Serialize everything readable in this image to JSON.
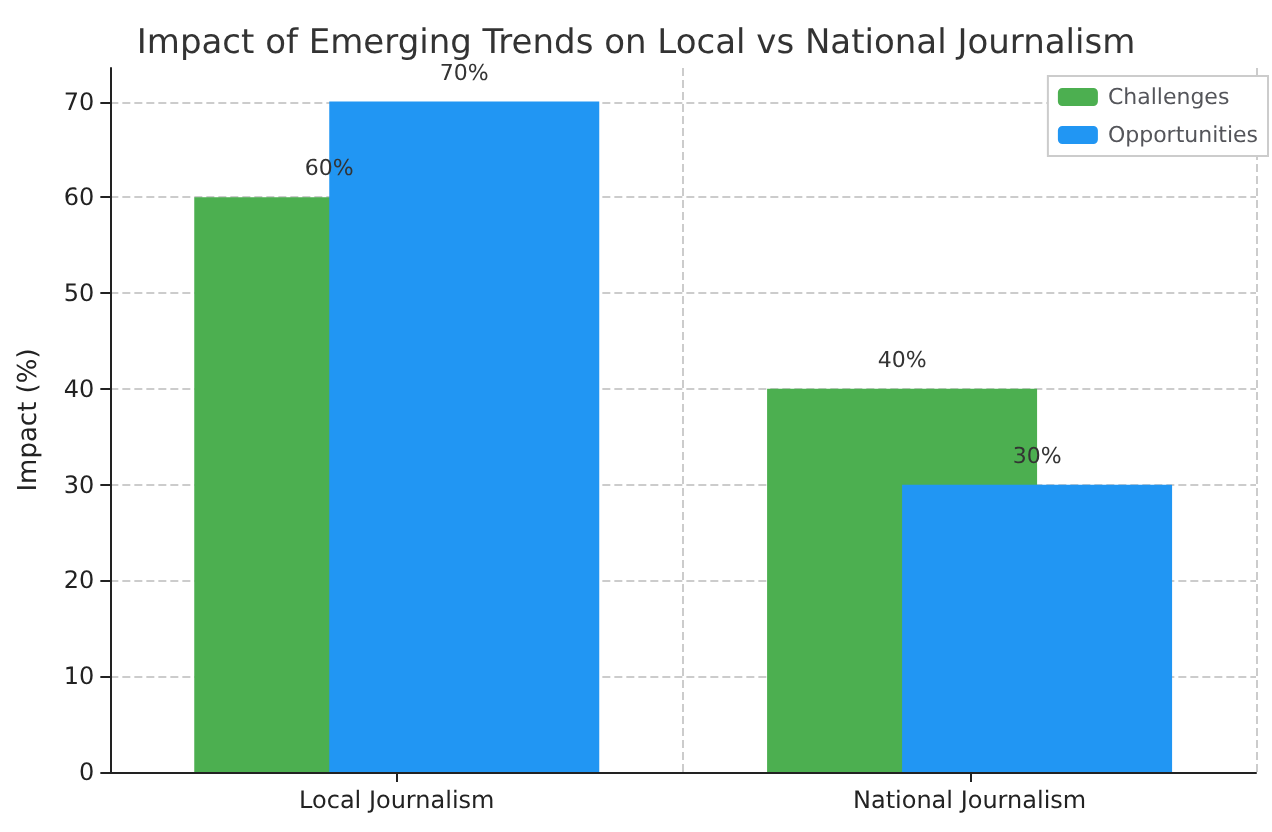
{
  "chart_data": {
    "type": "bar",
    "title": "Impact of Emerging Trends on Local vs National Journalism",
    "ylabel": "Impact (%)",
    "categories": [
      "Local Journalism",
      "National Journalism"
    ],
    "series": [
      {
        "name": "Challenges",
        "color": "#4caf50",
        "values": [
          60,
          40
        ],
        "value_labels": [
          "60%",
          "40%"
        ]
      },
      {
        "name": "Opportunities",
        "color": "#2196f3",
        "values": [
          70,
          30
        ],
        "value_labels": [
          "70%",
          "30%"
        ]
      }
    ],
    "ylim": [
      0,
      73.5
    ],
    "yticks": [
      0,
      10,
      20,
      30,
      40,
      50,
      60,
      70
    ],
    "grid": true,
    "legend": "top right"
  }
}
